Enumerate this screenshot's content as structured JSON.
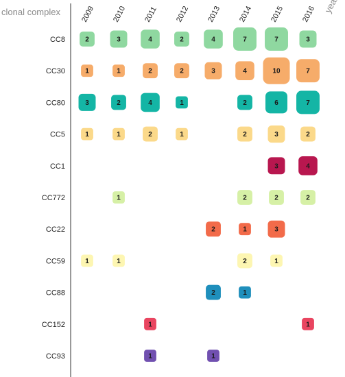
{
  "chart_data": {
    "type": "heatmap",
    "encoding": "bubble-grid; square size and color encode count",
    "row_axis_title": "clonal complex",
    "column_axis_title": "year",
    "columns": [
      "2009",
      "2010",
      "2011",
      "2012",
      "2013",
      "2014",
      "2015",
      "2016"
    ],
    "rows": [
      {
        "name": "CC8",
        "color": "#8fd8a0",
        "values": [
          2,
          3,
          4,
          2,
          4,
          7,
          7,
          3
        ]
      },
      {
        "name": "CC30",
        "color": "#f6ac6a",
        "values": [
          1,
          1,
          2,
          2,
          3,
          4,
          10,
          7
        ]
      },
      {
        "name": "CC80",
        "color": "#14b5a5",
        "values": [
          3,
          2,
          4,
          1,
          null,
          2,
          6,
          7
        ]
      },
      {
        "name": "CC5",
        "color": "#fbd98a",
        "values": [
          1,
          1,
          2,
          1,
          null,
          2,
          3,
          2
        ]
      },
      {
        "name": "CC1",
        "color": "#b8174f",
        "values": [
          null,
          null,
          null,
          null,
          null,
          null,
          3,
          4
        ]
      },
      {
        "name": "CC772",
        "color": "#d6f0a6",
        "values": [
          null,
          1,
          null,
          null,
          null,
          2,
          2,
          2
        ]
      },
      {
        "name": "CC22",
        "color": "#f26b4a",
        "values": [
          null,
          null,
          null,
          null,
          2,
          1,
          3,
          null
        ]
      },
      {
        "name": "CC59",
        "color": "#fdf6b2",
        "values": [
          1,
          1,
          null,
          null,
          null,
          2,
          1,
          null
        ]
      },
      {
        "name": "CC88",
        "color": "#1f8fbc",
        "values": [
          null,
          null,
          null,
          null,
          2,
          1,
          null,
          null
        ]
      },
      {
        "name": "CC152",
        "color": "#e94560",
        "values": [
          null,
          null,
          1,
          null,
          null,
          null,
          null,
          1
        ]
      },
      {
        "name": "CC93",
        "color": "#7150b0",
        "values": [
          null,
          null,
          1,
          null,
          1,
          null,
          null,
          null
        ]
      }
    ],
    "axis_line_color": "#333333"
  }
}
